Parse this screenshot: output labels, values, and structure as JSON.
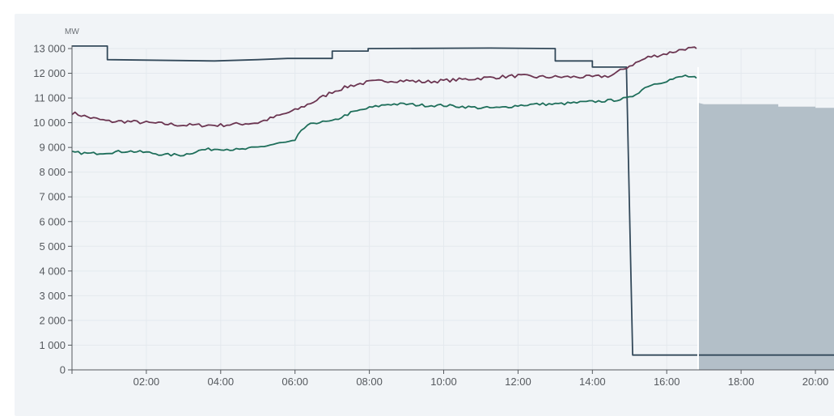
{
  "chart_data": {
    "type": "line",
    "unit": "MW",
    "x_domain": [
      "00:00",
      "20:30"
    ],
    "x_ticks": [
      "02:00",
      "04:00",
      "06:00",
      "08:00",
      "10:00",
      "12:00",
      "14:00",
      "16:00",
      "18:00",
      "20:00"
    ],
    "y_ticks": [
      "0",
      "1 000",
      "2 000",
      "3 000",
      "4 000",
      "5 000",
      "6 000",
      "7 000",
      "8 000",
      "9 000",
      "10 000",
      "11 000",
      "12 000",
      "13 000"
    ],
    "ylim": [
      0,
      13000
    ],
    "grid": true,
    "colors": {
      "capacity": "#33495a",
      "purple": "#6b3551",
      "green": "#1e6e5a",
      "forecast_fill": "#b3bfc8",
      "panel_bg": "#f1f4f7",
      "grid": "#e4e9ee",
      "axis": "#55595e"
    },
    "series": [
      {
        "key": "capacity",
        "style": "step",
        "points": [
          [
            "00:00",
            13100
          ],
          [
            "00:57",
            13100
          ],
          [
            "00:57",
            12550
          ],
          [
            "03:50",
            12500
          ],
          [
            "05:00",
            12550
          ],
          [
            "05:48",
            12600
          ],
          [
            "06:40",
            12600
          ],
          [
            "07:00",
            12600
          ],
          [
            "07:00",
            12900
          ],
          [
            "07:58",
            12900
          ],
          [
            "07:58",
            13000
          ],
          [
            "11:15",
            13020
          ],
          [
            "13:00",
            13000
          ],
          [
            "13:00",
            12500
          ],
          [
            "14:00",
            12500
          ],
          [
            "14:00",
            12250
          ],
          [
            "14:55",
            12250
          ],
          [
            "15:05",
            600
          ],
          [
            "20:30",
            600
          ]
        ]
      },
      {
        "key": "purple",
        "style": "line",
        "noise": 70,
        "points": [
          [
            "00:00",
            10400
          ],
          [
            "00:30",
            10200
          ],
          [
            "01:00",
            10050
          ],
          [
            "01:30",
            10050
          ],
          [
            "02:00",
            10000
          ],
          [
            "02:30",
            9950
          ],
          [
            "03:00",
            9900
          ],
          [
            "03:30",
            9900
          ],
          [
            "04:00",
            9900
          ],
          [
            "04:30",
            9950
          ],
          [
            "05:00",
            10000
          ],
          [
            "05:30",
            10250
          ],
          [
            "06:00",
            10500
          ],
          [
            "06:30",
            10850
          ],
          [
            "07:00",
            11250
          ],
          [
            "07:30",
            11500
          ],
          [
            "08:00",
            11650
          ],
          [
            "08:30",
            11700
          ],
          [
            "09:00",
            11700
          ],
          [
            "09:30",
            11650
          ],
          [
            "10:00",
            11700
          ],
          [
            "10:30",
            11750
          ],
          [
            "11:00",
            11800
          ],
          [
            "11:30",
            11850
          ],
          [
            "12:00",
            11900
          ],
          [
            "12:30",
            11850
          ],
          [
            "13:00",
            11850
          ],
          [
            "13:30",
            11850
          ],
          [
            "14:00",
            11850
          ],
          [
            "14:30",
            11900
          ],
          [
            "15:00",
            12300
          ],
          [
            "15:30",
            12650
          ],
          [
            "16:00",
            12800
          ],
          [
            "16:30",
            13000
          ],
          [
            "16:48",
            13000
          ]
        ]
      },
      {
        "key": "green",
        "style": "line",
        "noise": 55,
        "points": [
          [
            "00:00",
            8800
          ],
          [
            "00:30",
            8750
          ],
          [
            "01:00",
            8800
          ],
          [
            "01:30",
            8850
          ],
          [
            "02:00",
            8800
          ],
          [
            "02:30",
            8700
          ],
          [
            "03:00",
            8700
          ],
          [
            "03:30",
            8900
          ],
          [
            "04:00",
            8950
          ],
          [
            "04:30",
            8900
          ],
          [
            "05:00",
            9000
          ],
          [
            "05:30",
            9150
          ],
          [
            "06:00",
            9250
          ],
          [
            "06:10",
            9700
          ],
          [
            "06:30",
            10000
          ],
          [
            "07:00",
            10050
          ],
          [
            "07:30",
            10400
          ],
          [
            "08:00",
            10600
          ],
          [
            "08:30",
            10750
          ],
          [
            "09:00",
            10750
          ],
          [
            "09:30",
            10700
          ],
          [
            "10:00",
            10700
          ],
          [
            "10:30",
            10650
          ],
          [
            "11:00",
            10600
          ],
          [
            "11:30",
            10600
          ],
          [
            "12:00",
            10700
          ],
          [
            "12:30",
            10750
          ],
          [
            "13:00",
            10750
          ],
          [
            "13:30",
            10800
          ],
          [
            "14:00",
            10850
          ],
          [
            "14:30",
            10900
          ],
          [
            "15:00",
            11000
          ],
          [
            "15:30",
            11500
          ],
          [
            "16:00",
            11700
          ],
          [
            "16:30",
            11900
          ],
          [
            "16:48",
            11800
          ]
        ]
      }
    ],
    "forecast_area": [
      [
        "16:52",
        10800
      ],
      [
        "17:00",
        10750
      ],
      [
        "19:00",
        10750
      ],
      [
        "19:00",
        10650
      ],
      [
        "20:00",
        10650
      ],
      [
        "20:00",
        10600
      ],
      [
        "20:30",
        10600
      ]
    ],
    "now_marker": "16:48"
  }
}
